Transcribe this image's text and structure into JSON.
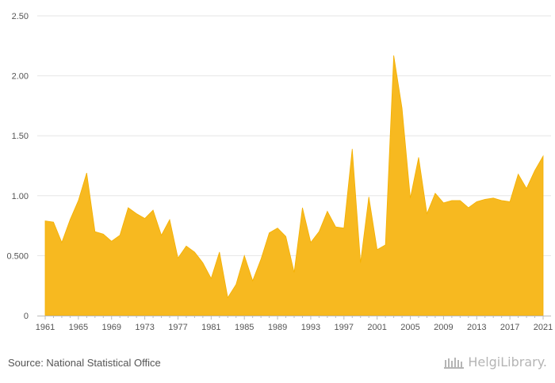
{
  "chart_data": {
    "type": "area",
    "title": "",
    "xlabel": "",
    "ylabel": "",
    "color": "#F7B920",
    "x": [
      1961,
      1962,
      1963,
      1964,
      1965,
      1966,
      1967,
      1968,
      1969,
      1970,
      1971,
      1972,
      1973,
      1974,
      1975,
      1976,
      1977,
      1978,
      1979,
      1980,
      1981,
      1982,
      1983,
      1984,
      1985,
      1986,
      1987,
      1988,
      1989,
      1990,
      1991,
      1992,
      1993,
      1994,
      1995,
      1996,
      1997,
      1998,
      1999,
      2000,
      2001,
      2002,
      2003,
      2004,
      2005,
      2006,
      2007,
      2008,
      2009,
      2010,
      2011,
      2012,
      2013,
      2014,
      2015,
      2016,
      2017,
      2018,
      2019,
      2020,
      2021
    ],
    "values": [
      0.79,
      0.78,
      0.61,
      0.8,
      0.96,
      1.19,
      0.7,
      0.68,
      0.62,
      0.67,
      0.9,
      0.85,
      0.81,
      0.88,
      0.67,
      0.8,
      0.48,
      0.58,
      0.53,
      0.44,
      0.31,
      0.53,
      0.15,
      0.26,
      0.5,
      0.29,
      0.47,
      0.69,
      0.73,
      0.66,
      0.36,
      0.9,
      0.61,
      0.7,
      0.87,
      0.74,
      0.73,
      1.39,
      0.44,
      0.99,
      0.55,
      0.59,
      2.17,
      1.73,
      0.98,
      1.32,
      0.85,
      1.02,
      0.94,
      0.96,
      0.96,
      0.9,
      0.95,
      0.97,
      0.98,
      0.96,
      0.95,
      1.18,
      1.06,
      1.21,
      1.33
    ],
    "x_tick_labels": [
      "1961",
      "1965",
      "1969",
      "1973",
      "1977",
      "1981",
      "1985",
      "1989",
      "1993",
      "1997",
      "2001",
      "2005",
      "2009",
      "2013",
      "2017",
      "2021"
    ],
    "y_tick_labels": [
      "0",
      "0.500",
      "1.00",
      "1.50",
      "2.00",
      "2.50"
    ],
    "ylim": [
      0,
      2.5
    ]
  },
  "footer": {
    "source": "Source: National Statistical Office",
    "brand_part1": "Helgi",
    "brand_part2": "Library."
  }
}
